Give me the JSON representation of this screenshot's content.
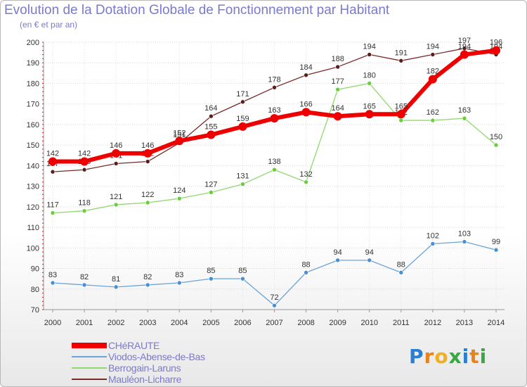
{
  "header": {
    "title": "Evolution de la Dotation Globale de Fonctionnement par Habitant",
    "subtitle": "(en € et par an)"
  },
  "brand": {
    "letters": [
      "P",
      "r",
      "o",
      "x",
      "i",
      "t",
      "i"
    ],
    "colors": [
      "#2a7fd4",
      "#e8831a",
      "#f0b020",
      "#3aa840",
      "#2a7fd4",
      "#e8831a",
      "#3aa840"
    ]
  },
  "chart_data": {
    "type": "line",
    "title": "Evolution de la Dotation Globale de Fonctionnement par Habitant",
    "subtitle": "(en € et par an)",
    "xlabel": "",
    "ylabel": "",
    "ylim": [
      70,
      200
    ],
    "yticks": [
      70,
      80,
      90,
      100,
      110,
      120,
      130,
      140,
      150,
      160,
      170,
      180,
      190,
      200
    ],
    "x": [
      "2000",
      "2001",
      "2002",
      "2003",
      "2004",
      "2005",
      "2006",
      "2007",
      "2008",
      "2009",
      "2010",
      "2011",
      "2012",
      "2013",
      "2014"
    ],
    "legend_position": "bottom-left",
    "series": [
      {
        "name": "Mauléon-Licharre",
        "color": "#7a2a2a",
        "dot": "#5a1e1e",
        "values": [
          137,
          138,
          141,
          142,
          151,
          164,
          171,
          178,
          184,
          188,
          194,
          191,
          194,
          197,
          194
        ]
      },
      {
        "name": "Berrogain-Laruns",
        "color": "#8fd870",
        "dot": "#6ccc3c",
        "values": [
          117,
          118,
          121,
          122,
          124,
          127,
          131,
          138,
          132,
          177,
          180,
          162,
          162,
          163,
          150
        ]
      },
      {
        "name": "Viodos-Abense-de-Bas",
        "color": "#6aa4d8",
        "dot": "#4a8fd0",
        "values": [
          83,
          82,
          81,
          82,
          83,
          85,
          85,
          72,
          88,
          94,
          94,
          88,
          102,
          103,
          99
        ]
      },
      {
        "name": "CHéRAUTE",
        "color": "#ee0000",
        "dot": "#ee0000",
        "values": [
          142,
          142,
          146,
          146,
          152,
          155,
          159,
          163,
          166,
          164,
          165,
          165,
          182,
          194,
          196
        ]
      }
    ],
    "legend_order": [
      "CHéRAUTE",
      "Viodos-Abense-de-Bas",
      "Berrogain-Laruns",
      "Mauléon-Licharre"
    ]
  }
}
